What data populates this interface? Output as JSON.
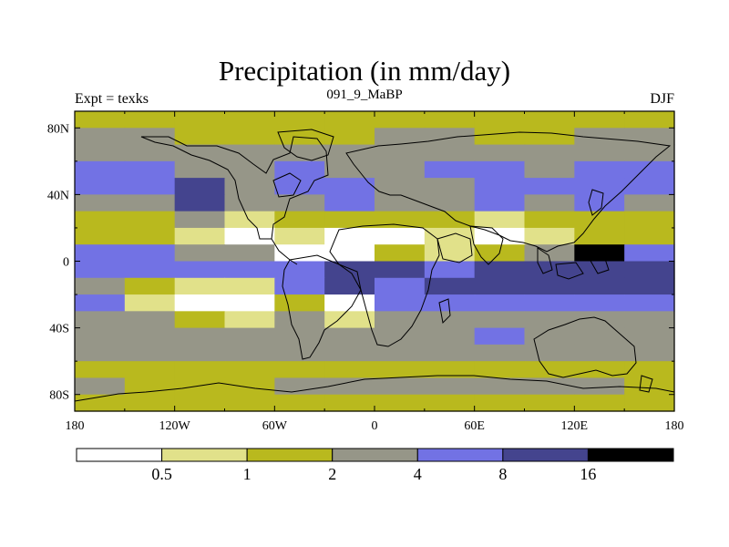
{
  "chart_data": {
    "type": "heatmap",
    "title": "Precipitation (in mm/day)",
    "subtitle": "091_9_MaBP",
    "left_label": "Expt = texks",
    "right_label": "DJF",
    "x_ticks": [
      "180",
      "120W",
      "60W",
      "0",
      "60E",
      "120E",
      "180"
    ],
    "y_ticks": [
      "80N",
      "40N",
      "0",
      "40S",
      "80S"
    ],
    "x_range": [
      -180,
      180
    ],
    "y_range": [
      -90,
      90
    ],
    "colorbar": {
      "levels": [
        "0.5",
        "1",
        "2",
        "4",
        "8",
        "16"
      ],
      "colors": [
        "#ffffff",
        "#e1e18a",
        "#b9b91e",
        "#969688",
        "#7272e4",
        "#44448e",
        "#000000"
      ]
    },
    "bands": [
      {
        "lat": 90,
        "values": [
          2,
          2,
          2,
          2,
          2,
          2,
          2,
          2,
          2,
          2,
          2,
          2
        ]
      },
      {
        "lat": 80,
        "values": [
          3,
          3,
          2,
          2,
          2,
          2,
          3,
          3,
          2,
          2,
          3,
          3
        ]
      },
      {
        "lat": 70,
        "values": [
          3,
          3,
          3,
          3,
          3,
          3,
          3,
          3,
          3,
          3,
          3,
          3
        ]
      },
      {
        "lat": 60,
        "values": [
          4,
          4,
          3,
          3,
          4,
          3,
          3,
          4,
          4,
          3,
          4,
          4
        ]
      },
      {
        "lat": 50,
        "values": [
          4,
          4,
          5,
          3,
          4,
          4,
          3,
          3,
          4,
          4,
          4,
          4
        ]
      },
      {
        "lat": 40,
        "values": [
          3,
          3,
          5,
          3,
          3,
          4,
          3,
          3,
          4,
          3,
          4,
          3
        ]
      },
      {
        "lat": 30,
        "values": [
          2,
          2,
          3,
          1,
          2,
          2,
          2,
          2,
          1,
          2,
          2,
          2
        ]
      },
      {
        "lat": 20,
        "values": [
          2,
          2,
          1,
          0,
          1,
          0,
          0,
          1,
          0,
          1,
          2,
          2
        ]
      },
      {
        "lat": 10,
        "values": [
          4,
          4,
          3,
          3,
          0,
          0,
          2,
          1,
          2,
          3,
          6,
          4
        ]
      },
      {
        "lat": 0,
        "values": [
          4,
          4,
          4,
          4,
          4,
          5,
          5,
          4,
          5,
          5,
          5,
          5
        ]
      },
      {
        "lat": -10,
        "values": [
          3,
          2,
          1,
          1,
          4,
          5,
          4,
          5,
          5,
          5,
          5,
          5
        ]
      },
      {
        "lat": -20,
        "values": [
          4,
          1,
          0,
          0,
          2,
          0,
          4,
          4,
          4,
          4,
          4,
          4
        ]
      },
      {
        "lat": -30,
        "values": [
          3,
          3,
          2,
          1,
          3,
          1,
          3,
          3,
          3,
          3,
          3,
          3
        ]
      },
      {
        "lat": -40,
        "values": [
          3,
          3,
          3,
          3,
          3,
          3,
          3,
          3,
          4,
          3,
          3,
          3
        ]
      },
      {
        "lat": -50,
        "values": [
          3,
          3,
          3,
          3,
          3,
          3,
          3,
          3,
          3,
          3,
          3,
          3
        ]
      },
      {
        "lat": -60,
        "values": [
          2,
          2,
          2,
          2,
          2,
          2,
          2,
          2,
          2,
          2,
          2,
          2
        ]
      },
      {
        "lat": -70,
        "values": [
          3,
          2,
          2,
          2,
          3,
          3,
          3,
          3,
          3,
          3,
          3,
          2
        ]
      },
      {
        "lat": -80,
        "values": [
          2,
          2,
          2,
          2,
          2,
          2,
          2,
          2,
          2,
          2,
          2,
          2
        ]
      },
      {
        "lat": -90,
        "values": [
          2,
          2,
          2,
          2,
          2,
          2,
          2,
          2,
          2,
          2,
          2,
          2
        ]
      }
    ]
  }
}
